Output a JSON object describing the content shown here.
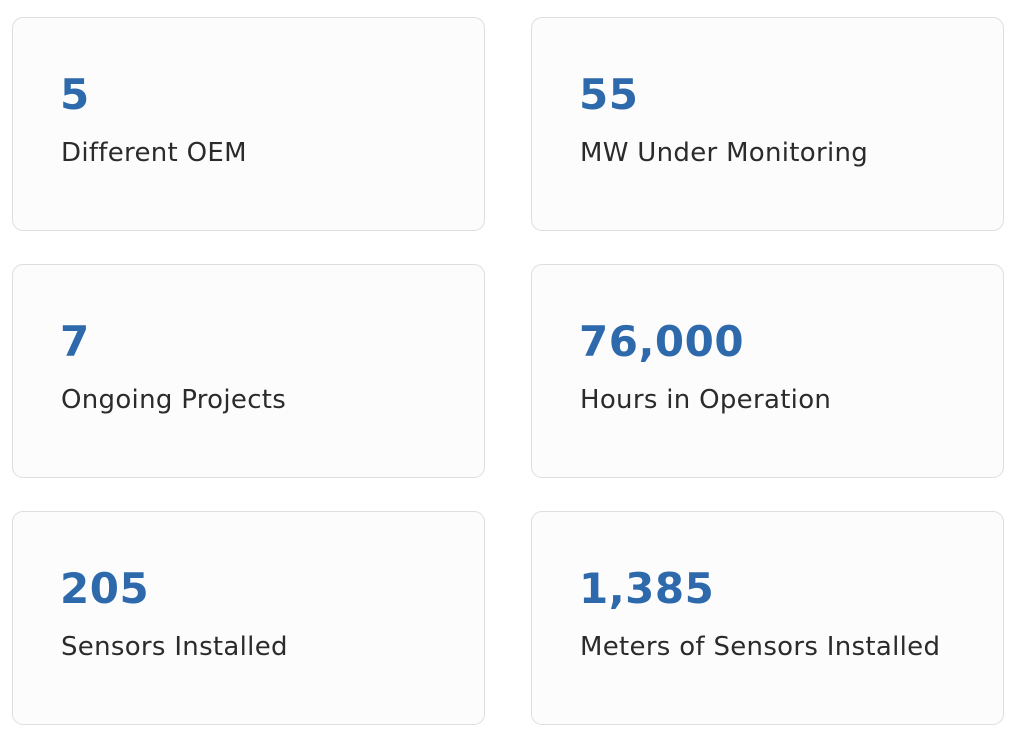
{
  "stats": [
    {
      "value": "5",
      "label": "Different OEM"
    },
    {
      "value": "55",
      "label": "MW Under Monitoring"
    },
    {
      "value": "7",
      "label": "Ongoing Projects"
    },
    {
      "value": "76,000",
      "label": "Hours in Operation"
    },
    {
      "value": "205",
      "label": "Sensors Installed"
    },
    {
      "value": "1,385",
      "label": "Meters of Sensors Installed"
    }
  ]
}
